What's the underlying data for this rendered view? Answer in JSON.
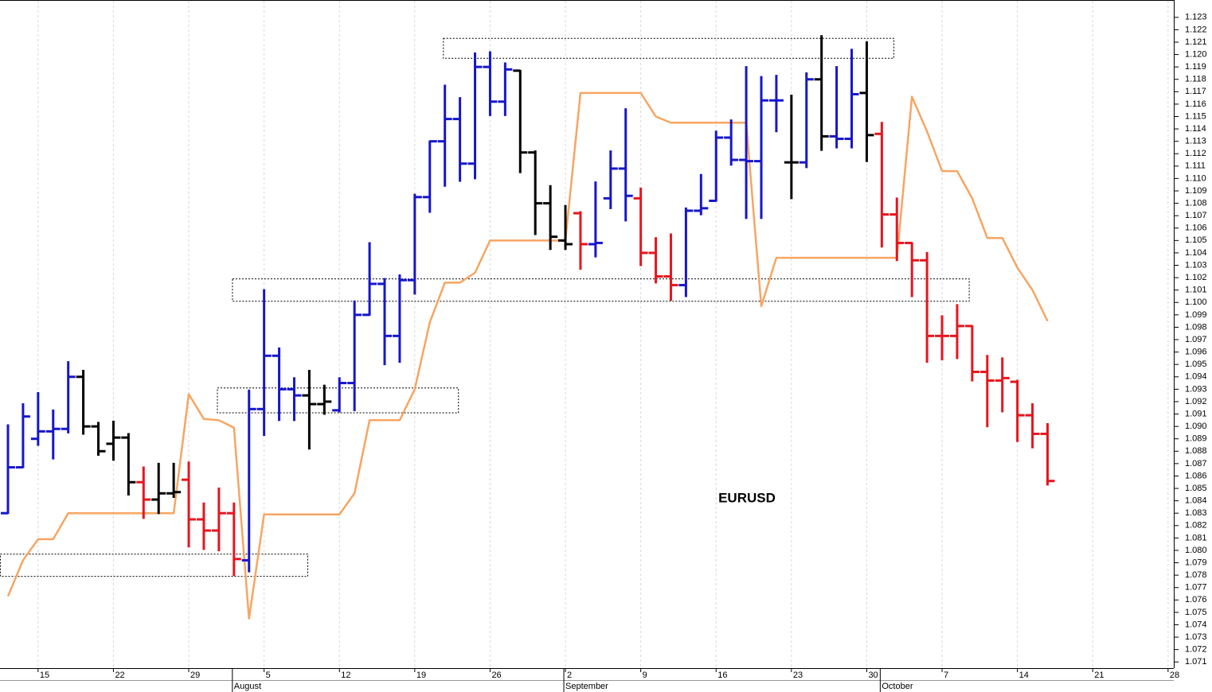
{
  "chart_data": {
    "type": "ohlc",
    "annotation": "EURUSD",
    "categories": [
      null,
      null,
      "15",
      null,
      null,
      null,
      null,
      "22",
      null,
      null,
      null,
      null,
      "29",
      null,
      null,
      null,
      null,
      "5",
      null,
      null,
      null,
      null,
      "12",
      null,
      null,
      null,
      null,
      "19",
      null,
      null,
      null,
      null,
      "26",
      null,
      null,
      null,
      null,
      "2",
      null,
      null,
      null,
      null,
      "9",
      null,
      null,
      null,
      null,
      "16",
      null,
      null,
      null,
      null,
      "23",
      null,
      null,
      null,
      null,
      "30",
      null,
      null,
      null,
      null,
      "7",
      null,
      null,
      null,
      null,
      "14",
      null,
      null,
      null,
      null,
      "21",
      null,
      null,
      null,
      null,
      "28"
    ],
    "months": [
      null,
      null,
      null,
      null,
      null,
      null,
      null,
      null,
      null,
      null,
      null,
      null,
      null,
      null,
      null,
      "August",
      null,
      null,
      null,
      null,
      null,
      null,
      null,
      null,
      null,
      null,
      null,
      null,
      null,
      null,
      null,
      null,
      null,
      null,
      null,
      null,
      null,
      "September",
      null,
      null,
      null,
      null,
      null,
      null,
      null,
      null,
      null,
      null,
      null,
      null,
      null,
      null,
      null,
      null,
      null,
      null,
      null,
      null,
      "October",
      null,
      null,
      null,
      null,
      null,
      null,
      null,
      null,
      null,
      null,
      null,
      null,
      null,
      null,
      null,
      null,
      null,
      null,
      null
    ],
    "open": [
      1.083,
      1.0867,
      1.089,
      1.0896,
      1.0898,
      1.094,
      1.09,
      1.0886,
      1.0891,
      1.0855,
      1.0841,
      1.0846,
      1.0857,
      1.0825,
      1.0816,
      1.083,
      1.0792,
      1.0914,
      1.0957,
      1.093,
      1.0925,
      1.0918,
      1.0913,
      1.0935,
      1.099,
      1.1015,
      1.0973,
      1.1018,
      1.1085,
      1.113,
      1.1148,
      1.1112,
      1.119,
      1.1162,
      1.1187,
      1.1121,
      1.108,
      1.105,
      1.1072,
      1.1047,
      1.1084,
      1.1108,
      1.1084,
      1.104,
      1.1021,
      1.1014,
      1.1074,
      1.1082,
      1.1133,
      1.1115,
      1.1114,
      1.1163,
      1.1113,
      1.1113,
      1.118,
      1.1134,
      1.1132,
      1.1169,
      1.1136,
      1.1071,
      1.1048,
      1.1034,
      1.0973,
      1.0973,
      1.0981,
      1.0944,
      1.0937,
      1.0936,
      1.0909,
      1.0894,
      null,
      null,
      null,
      null,
      null,
      null,
      null,
      null
    ],
    "high": [
      1.0901,
      1.0918,
      1.0927,
      1.0913,
      1.0952,
      1.0945,
      1.0903,
      1.0904,
      1.0894,
      1.0867,
      1.087,
      1.087,
      1.0871,
      1.0838,
      1.085,
      1.0838,
      1.0929,
      1.101,
      1.0963,
      1.0939,
      1.0945,
      1.0933,
      1.0939,
      1.1001,
      1.1048,
      1.1019,
      1.1022,
      1.1087,
      1.113,
      1.1175,
      1.1165,
      1.1201,
      1.1202,
      1.1193,
      1.1187,
      1.1122,
      1.1094,
      1.1078,
      1.1073,
      1.1097,
      1.1122,
      1.1156,
      1.1092,
      1.1052,
      1.1055,
      1.1076,
      1.1103,
      1.1138,
      1.1147,
      1.119,
      1.1182,
      1.1183,
      1.1167,
      1.1185,
      1.1215,
      1.119,
      1.1204,
      1.121,
      1.1145,
      1.1084,
      1.1048,
      1.104,
      1.0989,
      1.0998,
      1.0981,
      1.0957,
      1.0955,
      1.0937,
      1.0918,
      1.0902,
      null,
      null,
      null,
      null,
      null,
      null,
      null,
      null
    ],
    "low": [
      1.083,
      1.0867,
      1.0885,
      1.0874,
      1.0895,
      1.0894,
      1.0877,
      1.0873,
      1.0845,
      1.0826,
      1.083,
      1.0843,
      1.0803,
      1.0801,
      1.08,
      1.078,
      1.0783,
      1.0893,
      1.0905,
      1.0905,
      1.0882,
      1.091,
      1.0912,
      1.0913,
      1.099,
      1.095,
      1.0952,
      1.1007,
      1.1073,
      1.1094,
      1.1098,
      1.11,
      1.1151,
      1.1151,
      1.1105,
      1.1055,
      1.1043,
      1.1043,
      1.1027,
      1.1037,
      1.1076,
      1.1066,
      1.103,
      1.1016,
      1.1002,
      1.1005,
      1.1071,
      1.1082,
      1.1111,
      1.1068,
      1.1068,
      1.1138,
      1.1084,
      1.1109,
      1.1123,
      1.1125,
      1.1125,
      1.1114,
      1.1045,
      1.1034,
      1.1005,
      1.0952,
      1.0954,
      1.0955,
      1.0937,
      1.09,
      1.0912,
      1.0888,
      1.0883,
      1.0853,
      null,
      null,
      null,
      null,
      null,
      null,
      null,
      null
    ],
    "close": [
      1.0867,
      1.0908,
      1.0896,
      1.0898,
      1.094,
      1.09,
      1.088,
      1.0891,
      1.0855,
      1.0841,
      1.0846,
      1.0847,
      1.0825,
      1.0816,
      1.083,
      1.0793,
      1.0914,
      1.0957,
      1.093,
      1.0925,
      1.0918,
      1.092,
      1.0935,
      1.099,
      1.1015,
      1.0973,
      1.1018,
      1.1085,
      1.113,
      1.1148,
      1.1112,
      1.119,
      1.1162,
      1.1188,
      1.1121,
      1.108,
      1.1053,
      1.1047,
      1.1047,
      1.1048,
      1.1108,
      1.1086,
      1.104,
      1.1021,
      1.1014,
      1.1074,
      1.1076,
      1.1133,
      1.1115,
      1.1114,
      1.1163,
      1.1163,
      1.1113,
      1.118,
      1.1134,
      1.1132,
      1.1168,
      1.1135,
      1.1071,
      1.1048,
      1.1034,
      1.0973,
      1.0973,
      1.0981,
      1.0944,
      1.0937,
      1.0939,
      1.0909,
      1.0894,
      1.0856,
      null,
      null,
      null,
      null,
      null,
      null,
      null,
      null
    ],
    "bar_colors": [
      "#1616cc",
      "#1616cc",
      "#1616cc",
      "#1616cc",
      "#1616cc",
      "#000000",
      "#000000",
      "#000000",
      "#000000",
      "#e8141e",
      "#000000",
      "#000000",
      "#e8141e",
      "#e8141e",
      "#e8141e",
      "#e8141e",
      "#1616cc",
      "#1616cc",
      "#1616cc",
      "#1616cc",
      "#000000",
      "#000000",
      "#1616cc",
      "#1616cc",
      "#1616cc",
      "#1616cc",
      "#1616cc",
      "#1616cc",
      "#1616cc",
      "#1616cc",
      "#1616cc",
      "#1616cc",
      "#1616cc",
      "#1616cc",
      "#000000",
      "#000000",
      "#000000",
      "#000000",
      "#e8141e",
      "#1616cc",
      "#1616cc",
      "#1616cc",
      "#e8141e",
      "#e8141e",
      "#e8141e",
      "#1616cc",
      "#1616cc",
      "#1616cc",
      "#1616cc",
      "#1616cc",
      "#1616cc",
      "#1616cc",
      "#000000",
      "#1616cc",
      "#000000",
      "#1616cc",
      "#1616cc",
      "#000000",
      "#e8141e",
      "#e8141e",
      "#e8141e",
      "#e8141e",
      "#e8141e",
      "#e8141e",
      "#e8141e",
      "#e8141e",
      "#e8141e",
      "#e8141e",
      "#e8141e",
      "#e8141e",
      null,
      null,
      null,
      null,
      null,
      null,
      null,
      null
    ],
    "line": {
      "color": "#f7a562",
      "values": [
        1.0763,
        1.0792,
        1.0809,
        1.0809,
        1.083,
        1.083,
        1.083,
        1.083,
        1.083,
        1.083,
        1.083,
        1.083,
        1.0926,
        1.0906,
        1.0905,
        1.0899,
        1.0745,
        1.0829,
        1.0829,
        1.0829,
        1.0829,
        1.0829,
        1.0829,
        1.0846,
        1.0905,
        1.0905,
        1.0905,
        1.093,
        1.0984,
        1.1016,
        1.1016,
        1.1024,
        1.105,
        1.105,
        1.105,
        1.105,
        1.105,
        1.105,
        1.1169,
        1.1169,
        1.1169,
        1.1169,
        1.1169,
        1.115,
        1.1145,
        1.1145,
        1.1145,
        1.1145,
        1.1145,
        1.1145,
        1.0997,
        1.1036,
        1.1036,
        1.1036,
        1.1036,
        1.1036,
        1.1036,
        1.1036,
        1.1036,
        1.1036,
        1.1166,
        1.1138,
        1.1106,
        1.1106,
        1.1084,
        1.1052,
        1.1052,
        1.1028,
        1.101,
        1.0985,
        null,
        null,
        null,
        null,
        null,
        null,
        null,
        null
      ]
    },
    "zones": [
      {
        "x": [
          28.9,
          58.8
        ],
        "y": [
          1.1197,
          1.1213
        ]
      },
      {
        "x": [
          14.9,
          63.8
        ],
        "y": [
          1.1001,
          1.1019
        ]
      },
      {
        "x": [
          13.9,
          29.9
        ],
        "y": [
          1.0911,
          1.0931
        ]
      },
      {
        "x": [
          -0.5,
          19.9
        ],
        "y": [
          1.0779,
          1.0797
        ]
      }
    ],
    "ylim": [
      1.0705,
      1.1244
    ],
    "yticks": [
      1.071,
      1.072,
      1.073,
      1.074,
      1.075,
      1.076,
      1.077,
      1.078,
      1.079,
      {
        "value": 1.08,
        "label": "1.080"
      },
      1.081,
      1.082,
      1.083,
      1.084,
      1.085,
      1.086,
      1.087,
      1.088,
      1.089,
      {
        "value": 1.09,
        "label": "1.090"
      },
      1.091,
      1.092,
      1.093,
      1.094,
      1.095,
      1.096,
      1.097,
      1.098,
      1.099,
      {
        "value": 1.1,
        "label": "1.100"
      },
      1.101,
      1.102,
      1.103,
      1.104,
      1.105,
      1.106,
      1.107,
      1.108,
      1.109,
      {
        "value": 1.11,
        "label": "1.110"
      },
      1.111,
      1.112,
      1.113,
      1.114,
      1.115,
      1.116,
      1.117,
      1.118,
      1.119,
      {
        "value": 1.12,
        "label": "1.120"
      },
      1.121,
      1.122,
      1.123
    ],
    "grid": true
  }
}
